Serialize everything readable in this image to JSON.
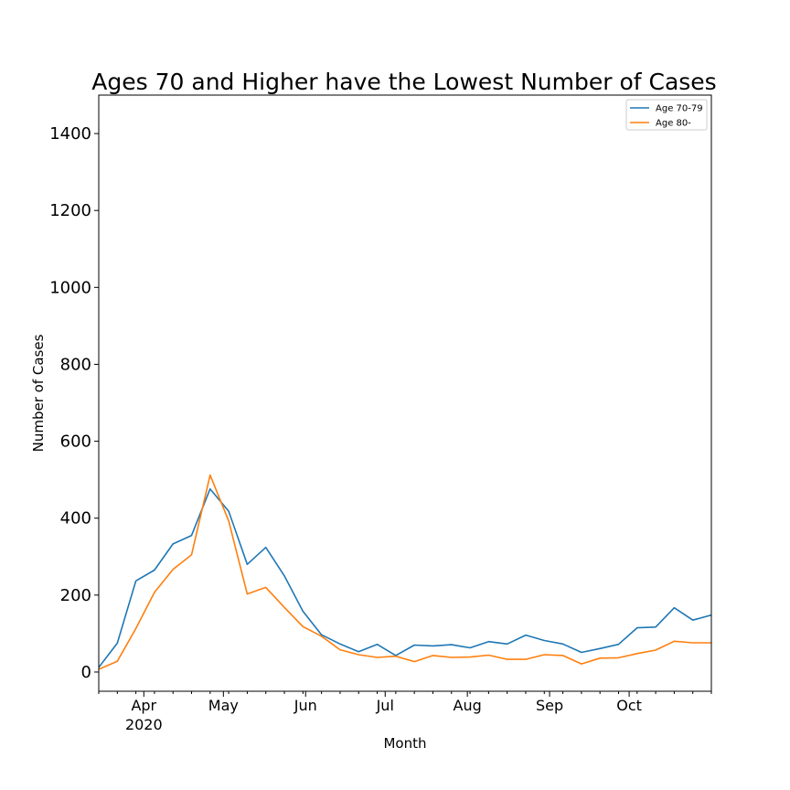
{
  "chart_data": {
    "type": "line",
    "title": "Ages 70 and Higher have the Lowest Number of Cases",
    "xlabel": "Month",
    "ylabel": "Number of Cases",
    "x": [
      "2020-03-15",
      "2020-03-22",
      "2020-03-29",
      "2020-04-05",
      "2020-04-12",
      "2020-04-19",
      "2020-04-26",
      "2020-05-03",
      "2020-05-10",
      "2020-05-17",
      "2020-05-24",
      "2020-05-31",
      "2020-06-07",
      "2020-06-14",
      "2020-06-21",
      "2020-06-28",
      "2020-07-05",
      "2020-07-12",
      "2020-07-19",
      "2020-07-26",
      "2020-08-02",
      "2020-08-09",
      "2020-08-16",
      "2020-08-23",
      "2020-08-30",
      "2020-09-06",
      "2020-09-13",
      "2020-09-20",
      "2020-09-27",
      "2020-10-04",
      "2020-10-11",
      "2020-10-18",
      "2020-10-25",
      "2020-11-01"
    ],
    "xlim": [
      "2020-03-15",
      "2020-11-01"
    ],
    "ylim": [
      -50,
      1500
    ],
    "yticks": [
      0,
      200,
      400,
      600,
      800,
      1000,
      1200,
      1400
    ],
    "xticks": [
      {
        "date": "2020-04-01",
        "label": "Apr",
        "sublabel": "2020"
      },
      {
        "date": "2020-05-01",
        "label": "May",
        "sublabel": ""
      },
      {
        "date": "2020-06-01",
        "label": "Jun",
        "sublabel": ""
      },
      {
        "date": "2020-07-01",
        "label": "Jul",
        "sublabel": ""
      },
      {
        "date": "2020-08-01",
        "label": "Aug",
        "sublabel": ""
      },
      {
        "date": "2020-09-01",
        "label": "Sep",
        "sublabel": ""
      },
      {
        "date": "2020-10-01",
        "label": "Oct",
        "sublabel": ""
      }
    ],
    "grid": false,
    "legend_position": "top-right",
    "series": [
      {
        "name": "Age 70-79",
        "color": "#1f77b4",
        "values": [
          12,
          75,
          237,
          265,
          333,
          355,
          476,
          418,
          280,
          324,
          250,
          158,
          97,
          73,
          53,
          72,
          43,
          70,
          68,
          71,
          63,
          79,
          73,
          96,
          82,
          73,
          51,
          61,
          72,
          115,
          117,
          167,
          135,
          148
        ]
      },
      {
        "name": "Age 80-",
        "color": "#ff7f0e",
        "values": [
          7,
          28,
          113,
          207,
          267,
          305,
          512,
          393,
          203,
          220,
          168,
          118,
          93,
          58,
          45,
          38,
          41,
          27,
          43,
          38,
          39,
          44,
          33,
          33,
          45,
          43,
          21,
          36,
          37,
          48,
          57,
          80,
          76,
          76
        ]
      }
    ]
  }
}
